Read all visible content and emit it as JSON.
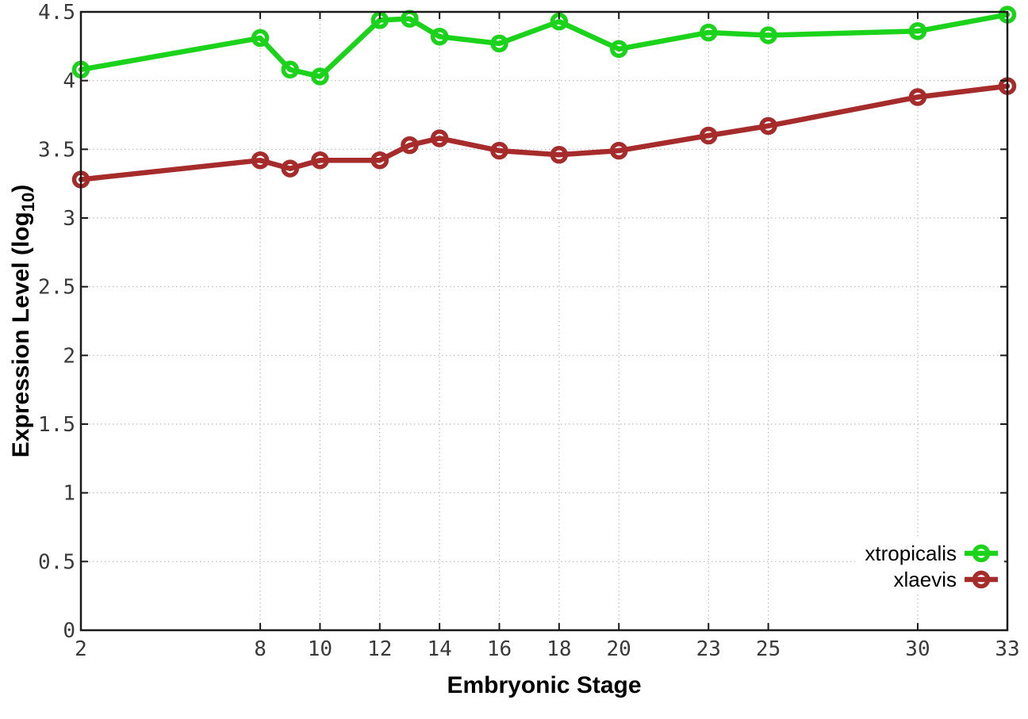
{
  "page": {
    "background": "#ffffff"
  },
  "chart_data": {
    "type": "line",
    "title": "",
    "xlabel": "Embryonic Stage",
    "ylabel": "Expression Level (log10)",
    "ylabel_parts": {
      "main": "Expression Level (log",
      "sub": "10",
      "end": ")"
    },
    "xlim": [
      2,
      33
    ],
    "ylim": [
      0,
      4.5
    ],
    "grid": true,
    "legend_position": "bottom-right-inside",
    "x": [
      2,
      8,
      9,
      10,
      12,
      13,
      14,
      16,
      18,
      20,
      23,
      25,
      30,
      33
    ],
    "xticks": [
      2,
      8,
      10,
      12,
      14,
      16,
      18,
      20,
      23,
      25,
      30,
      33
    ],
    "xtick_labels": [
      "2",
      "8",
      "10",
      "12",
      "14",
      "16",
      "18",
      "20",
      "23",
      "25",
      "30",
      "33"
    ],
    "yticks": [
      0,
      0.5,
      1,
      1.5,
      2,
      2.5,
      3,
      3.5,
      4,
      4.5
    ],
    "ytick_labels": [
      "0",
      "0.5",
      "1",
      "1.5",
      "2",
      "2.5",
      "3",
      "3.5",
      "4",
      "4.5"
    ],
    "marker": "open-circle",
    "grid_color": "#bbbbbb",
    "axis_color": "#1a1a1a",
    "series": [
      {
        "name": "xtropicalis",
        "color": "#1cd31c",
        "values": [
          4.08,
          4.31,
          4.08,
          4.03,
          4.44,
          4.45,
          4.32,
          4.27,
          4.43,
          4.23,
          4.35,
          4.33,
          4.36,
          4.48
        ]
      },
      {
        "name": "xlaevis",
        "color": "#a62c2c",
        "values": [
          3.28,
          3.42,
          3.36,
          3.42,
          3.42,
          3.53,
          3.58,
          3.49,
          3.46,
          3.49,
          3.6,
          3.67,
          3.88,
          3.96
        ]
      }
    ]
  }
}
